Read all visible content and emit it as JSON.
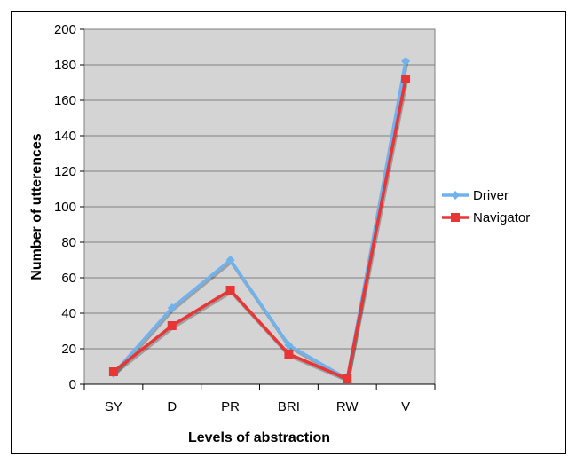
{
  "chart_data": {
    "type": "line",
    "title": "",
    "xlabel": "Levels of abstraction",
    "ylabel": "Number of utterences",
    "categories": [
      "SY",
      "D",
      "PR",
      "BRI",
      "RW",
      "V"
    ],
    "ylim": [
      0,
      200
    ],
    "yticks": [
      0,
      20,
      40,
      60,
      80,
      100,
      120,
      140,
      160,
      180,
      200
    ],
    "grid": true,
    "legend_position": "right",
    "series": [
      {
        "name": "Driver",
        "values": [
          6,
          43,
          70,
          22,
          3,
          182
        ],
        "color": "#6fb2ee",
        "marker": "diamond"
      },
      {
        "name": "Navigator",
        "values": [
          7,
          33,
          53,
          17,
          3,
          172
        ],
        "color": "#e83636",
        "marker": "square"
      }
    ],
    "plot_background": "#d4d4d4"
  }
}
